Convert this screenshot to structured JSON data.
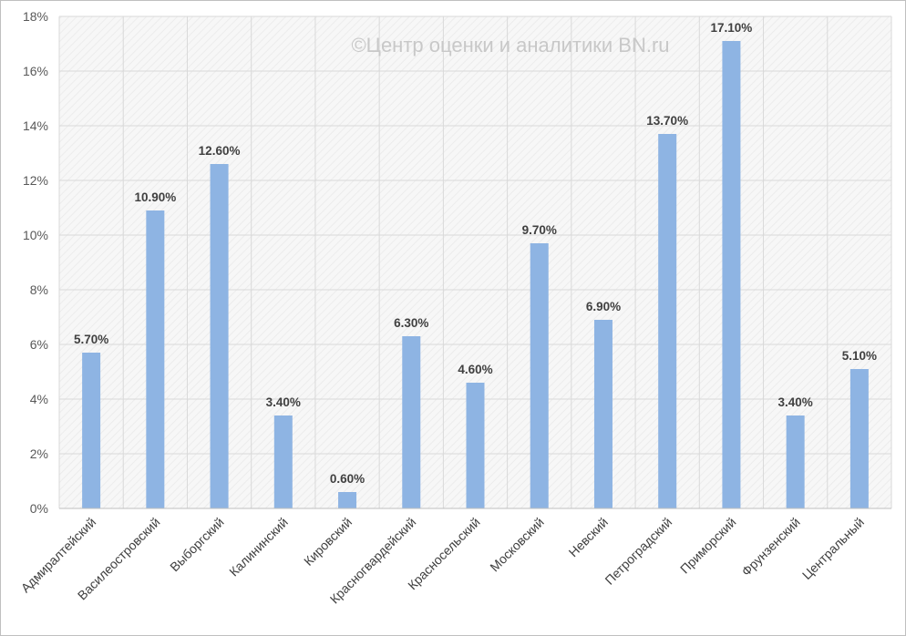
{
  "chart_data": {
    "type": "bar",
    "title": "",
    "xlabel": "",
    "ylabel": "",
    "watermark": "©Центр оценки и аналитики BN.ru",
    "categories": [
      "Адмиралтейский",
      "Василеостровский",
      "Выборгский",
      "Калининский",
      "Кировский",
      "Красногвардейский",
      "Красносельский",
      "Московский",
      "Невский",
      "Петроградский",
      "Приморский",
      "Фрунзенский",
      "Центральный"
    ],
    "values": [
      5.7,
      10.9,
      12.6,
      3.4,
      0.6,
      6.3,
      4.6,
      9.7,
      6.9,
      13.7,
      17.1,
      3.4,
      5.1
    ],
    "data_labels": [
      "5.70%",
      "10.90%",
      "12.60%",
      "3.40%",
      "0.60%",
      "6.30%",
      "4.60%",
      "9.70%",
      "6.90%",
      "13.70%",
      "17.10%",
      "3.40%",
      "5.10%"
    ],
    "ylim": [
      0,
      18
    ],
    "yticks": [
      0,
      2,
      4,
      6,
      8,
      10,
      12,
      14,
      16,
      18
    ],
    "ytick_labels": [
      "0%",
      "2%",
      "4%",
      "6%",
      "8%",
      "10%",
      "12%",
      "14%",
      "16%",
      "18%"
    ],
    "grid": true,
    "legend": "none",
    "bar_color": "#8EB4E3",
    "plot_background": "#F2F2F2",
    "grid_color": "#D9D9D9"
  }
}
